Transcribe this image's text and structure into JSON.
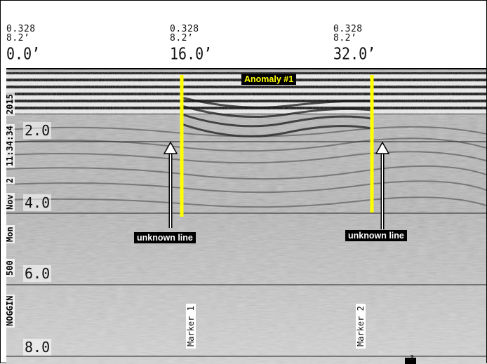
{
  "header_marks": [
    {
      "line1": "0.328",
      "line2": "8.2’",
      "distance": "0.0’"
    },
    {
      "line1": "0.328",
      "line2": "8.2’",
      "distance": "16.0’"
    },
    {
      "line1": "0.328",
      "line2": "8.2’",
      "distance": "32.0’"
    }
  ],
  "depth_ticks": [
    "2.0",
    "4.0",
    "6.0",
    "8.0"
  ],
  "side_text": [
    "2015",
    "11:34:34",
    "2",
    "Nov",
    "Mon",
    "500",
    "NOGGIN"
  ],
  "annotations": {
    "anomaly_label": "Anomaly #1",
    "unknown_line_left": "unknown line",
    "unknown_line_right": "unknown line"
  },
  "markers": [
    "Marker 1",
    "Marker 2"
  ],
  "footer_mark": "3",
  "colors": {
    "highlight_line": "#ffff00",
    "label_background": "#000000",
    "label_text": "#ffffff",
    "anomaly_text": "#ffff00"
  }
}
